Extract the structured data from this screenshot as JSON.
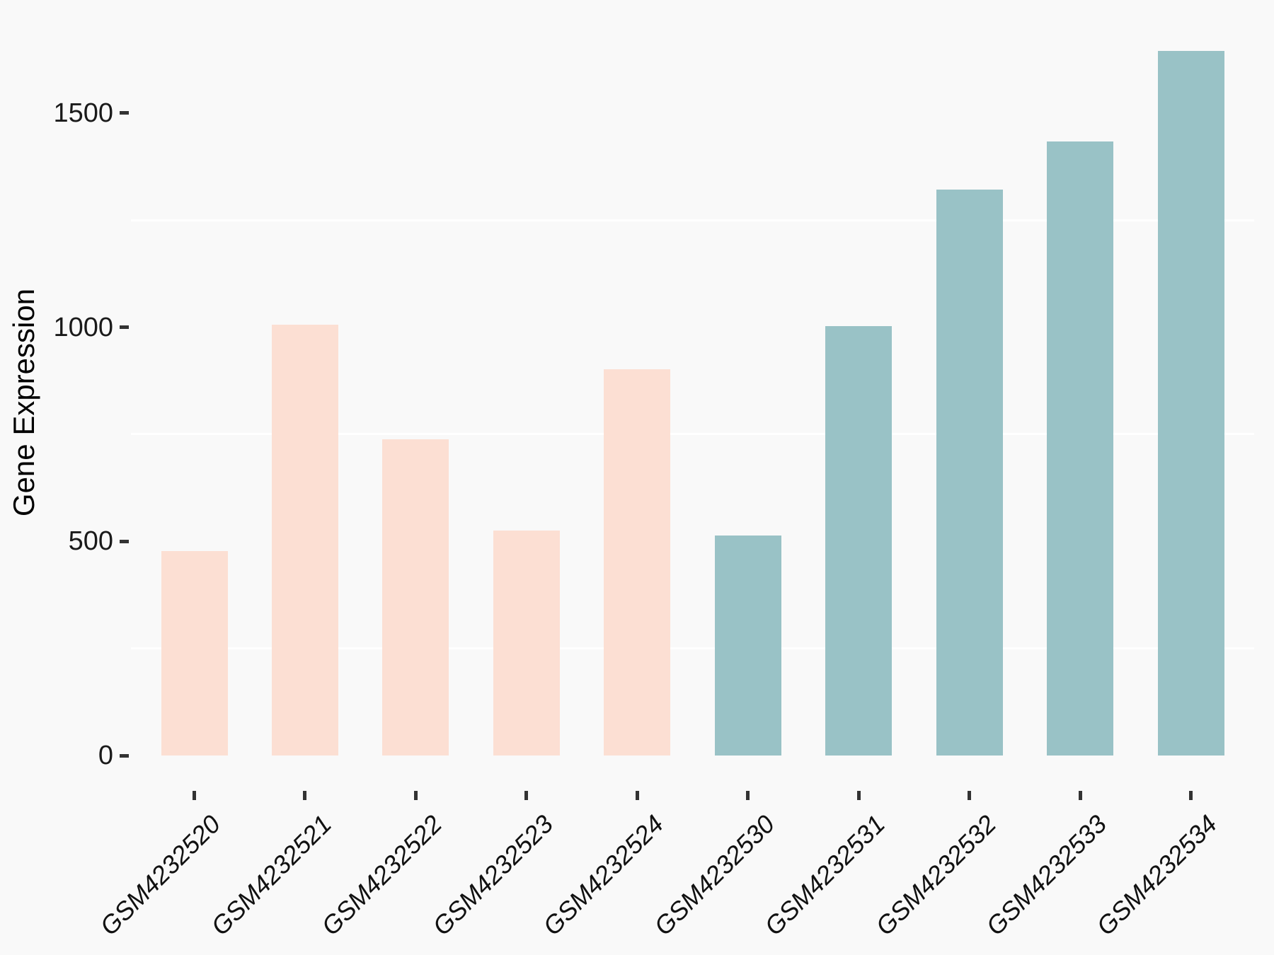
{
  "figure": {
    "background_color": "#f9f9f9",
    "gridline_color": "#ffffff",
    "tick_mark_color": "#333333",
    "text_color": "#1a1a1a"
  },
  "chart_data": {
    "type": "bar",
    "title": "",
    "xlabel": "",
    "ylabel": "Gene Expression",
    "categories": [
      "GSM4232520",
      "GSM4232521",
      "GSM4232522",
      "GSM4232523",
      "GSM4232524",
      "GSM4232530",
      "GSM4232531",
      "GSM4232532",
      "GSM4232533",
      "GSM4232534"
    ],
    "values": [
      477,
      1006,
      738,
      525,
      902,
      514,
      1003,
      1321,
      1434,
      1645
    ],
    "groups": [
      "pink",
      "pink",
      "pink",
      "pink",
      "pink",
      "teal",
      "teal",
      "teal",
      "teal",
      "teal"
    ],
    "group_colors": {
      "pink": "#FCDFD3",
      "teal": "#99C2C6"
    },
    "ylim": [
      0,
      1731
    ],
    "yticks": [
      0,
      500,
      1000,
      1500
    ],
    "ytick_labels": [
      "0",
      "500",
      "1000",
      "1500"
    ],
    "minor_gridlines": [
      250,
      750,
      1250
    ],
    "grid": "minor horizontal gridlines only, white",
    "legend": "none",
    "x_tick_label_style": "italic, rotated 45 degrees, right-anchored"
  }
}
